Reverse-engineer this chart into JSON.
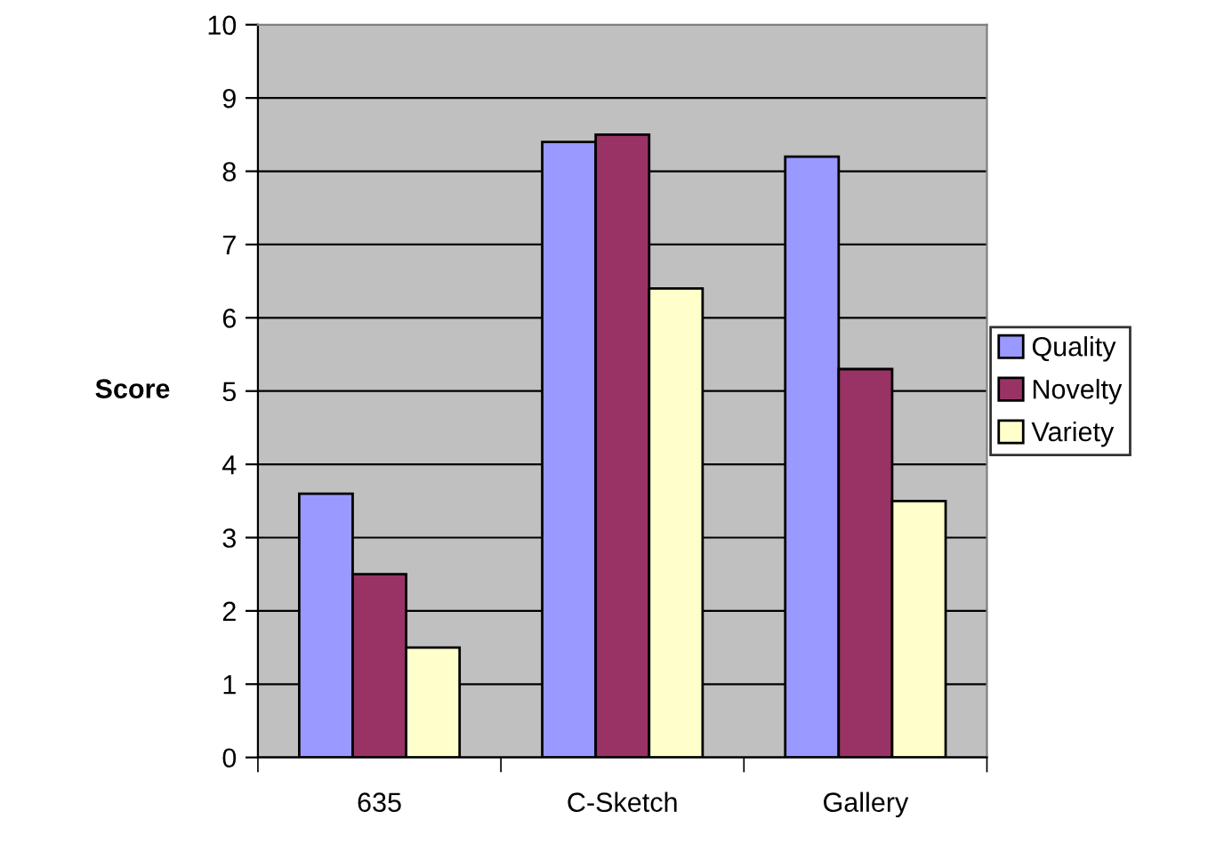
{
  "chart_data": {
    "type": "bar",
    "ylabel": "Score",
    "categories": [
      "635",
      "C-Sketch",
      "Gallery"
    ],
    "series": [
      {
        "name": "Quality",
        "color": "#9999ff",
        "values": [
          3.6,
          8.4,
          8.2
        ]
      },
      {
        "name": "Novelty",
        "color": "#993366",
        "values": [
          2.5,
          8.5,
          5.3
        ]
      },
      {
        "name": "Variety",
        "color": "#ffffcc",
        "values": [
          1.5,
          6.4,
          3.5
        ]
      }
    ],
    "ylim": [
      0,
      10
    ],
    "yticks": [
      0,
      1,
      2,
      3,
      4,
      5,
      6,
      7,
      8,
      9,
      10
    ],
    "grid": "y",
    "legend": "right"
  }
}
